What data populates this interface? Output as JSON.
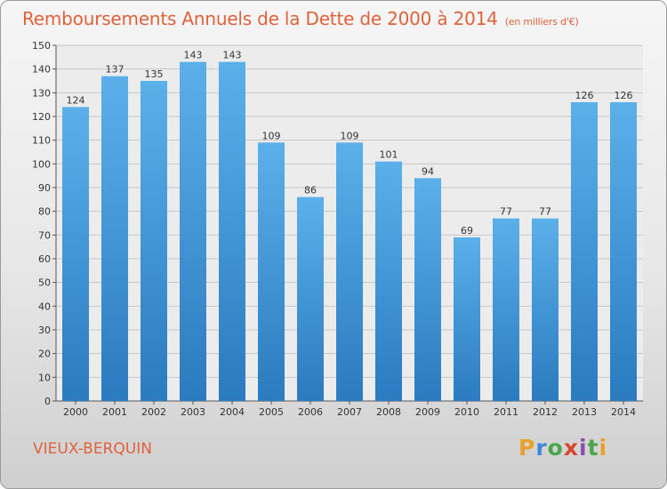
{
  "chart_data": {
    "type": "bar",
    "title": "Remboursements Annuels de la Dette de 2000 à 2014",
    "subtitle": "(en milliers d'€)",
    "categories": [
      "2000",
      "2001",
      "2002",
      "2003",
      "2004",
      "2005",
      "2006",
      "2007",
      "2008",
      "2009",
      "2010",
      "2011",
      "2012",
      "2013",
      "2014"
    ],
    "values": [
      124,
      137,
      135,
      143,
      143,
      109,
      86,
      109,
      101,
      94,
      69,
      77,
      77,
      126,
      126
    ],
    "ylim": [
      0,
      150
    ],
    "yticks": [
      0,
      10,
      20,
      30,
      40,
      50,
      60,
      70,
      80,
      90,
      100,
      110,
      120,
      130,
      140,
      150
    ],
    "xlabel": "",
    "ylabel": "",
    "grid": true
  },
  "commune": "VIEUX-BERQUIN",
  "logo": {
    "text": "Proxiti",
    "letters": [
      "P",
      "r",
      "o",
      "x",
      "i",
      "t",
      "i"
    ]
  },
  "colors": {
    "title": "#e0623a",
    "bar_top": "#5bb0ea",
    "bar_bottom": "#2a7bbf",
    "grid": "#c8c8c8"
  }
}
